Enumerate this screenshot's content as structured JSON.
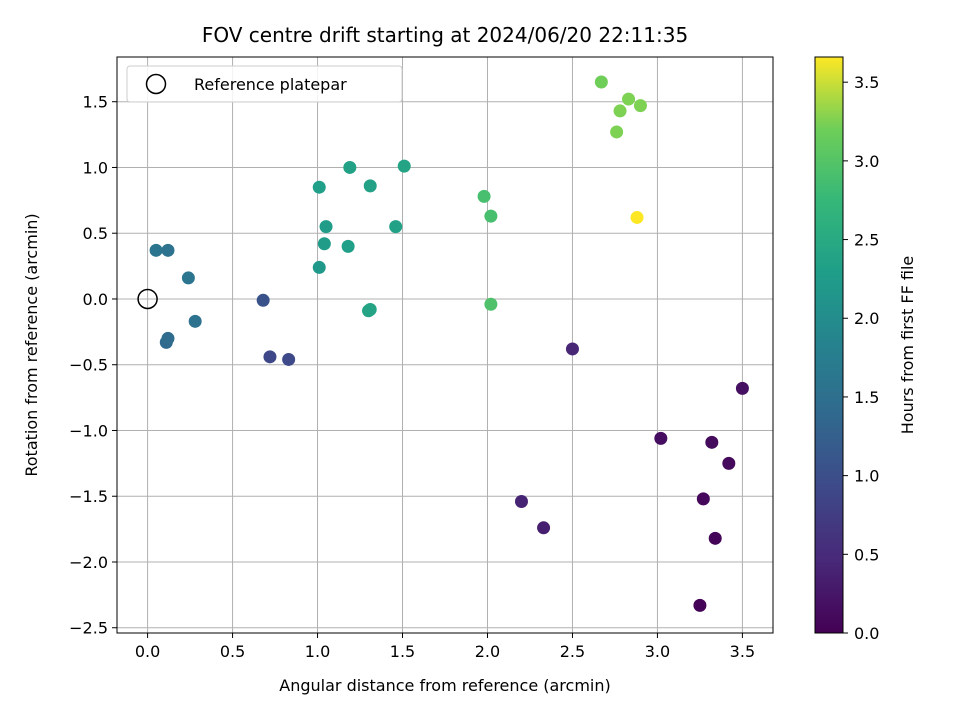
{
  "chart_data": {
    "type": "scatter",
    "title": "FOV centre drift starting at 2024/06/20 22:11:35",
    "xlabel": "Angular distance from reference (arcmin)",
    "ylabel": "Rotation from reference (arcmin)",
    "xlim": [
      -0.18,
      3.68
    ],
    "ylim": [
      -2.54,
      1.84
    ],
    "xticks": [
      0.0,
      0.5,
      1.0,
      1.5,
      2.0,
      2.5,
      3.0,
      3.5
    ],
    "xtick_labels": [
      "0.0",
      "0.5",
      "1.0",
      "1.5",
      "2.0",
      "2.5",
      "3.0",
      "3.5"
    ],
    "yticks": [
      -2.5,
      -2.0,
      -1.5,
      -1.0,
      -0.5,
      0.0,
      0.5,
      1.0,
      1.5
    ],
    "ytick_labels": [
      "−2.5",
      "−2.0",
      "−1.5",
      "−1.0",
      "−0.5",
      "0.0",
      "0.5",
      "1.0",
      "1.5"
    ],
    "grid": true,
    "legend": {
      "position": "upper-left",
      "entries": [
        "Reference platepar"
      ]
    },
    "reference_point": {
      "x": 0.0,
      "y": 0.0,
      "label": "Reference platepar"
    },
    "colorbar": {
      "label": "Hours from first FF file",
      "colormap": "viridis",
      "range": [
        0.0,
        3.66
      ],
      "ticks": [
        0.0,
        0.5,
        1.0,
        1.5,
        2.0,
        2.5,
        3.0,
        3.5
      ],
      "tick_labels": [
        "0.0",
        "0.5",
        "1.0",
        "1.5",
        "2.0",
        "2.5",
        "3.0",
        "3.5"
      ]
    },
    "points": [
      {
        "x": 3.25,
        "y": -2.33,
        "c": 0.02
      },
      {
        "x": 3.34,
        "y": -1.82,
        "c": 0.05
      },
      {
        "x": 3.27,
        "y": -1.52,
        "c": 0.08
      },
      {
        "x": 3.42,
        "y": -1.25,
        "c": 0.1
      },
      {
        "x": 3.32,
        "y": -1.09,
        "c": 0.12
      },
      {
        "x": 3.02,
        "y": -1.06,
        "c": 0.15
      },
      {
        "x": 3.5,
        "y": -0.68,
        "c": 0.18
      },
      {
        "x": 2.33,
        "y": -1.74,
        "c": 0.35
      },
      {
        "x": 2.2,
        "y": -1.54,
        "c": 0.4
      },
      {
        "x": 2.5,
        "y": -0.38,
        "c": 0.45
      },
      {
        "x": 0.72,
        "y": -0.44,
        "c": 0.9
      },
      {
        "x": 0.83,
        "y": -0.46,
        "c": 0.92
      },
      {
        "x": 0.68,
        "y": -0.01,
        "c": 1.05
      },
      {
        "x": 0.11,
        "y": -0.33,
        "c": 1.4
      },
      {
        "x": 0.12,
        "y": -0.3,
        "c": 1.45
      },
      {
        "x": 0.28,
        "y": -0.17,
        "c": 1.55
      },
      {
        "x": 0.24,
        "y": 0.16,
        "c": 1.6
      },
      {
        "x": 0.05,
        "y": 0.37,
        "c": 1.6
      },
      {
        "x": 0.12,
        "y": 0.37,
        "c": 1.55
      },
      {
        "x": 1.01,
        "y": 0.24,
        "c": 2.2
      },
      {
        "x": 1.04,
        "y": 0.42,
        "c": 2.25
      },
      {
        "x": 1.05,
        "y": 0.55,
        "c": 2.25
      },
      {
        "x": 1.18,
        "y": 0.4,
        "c": 2.3
      },
      {
        "x": 1.01,
        "y": 0.85,
        "c": 2.3
      },
      {
        "x": 1.19,
        "y": 1.0,
        "c": 2.35
      },
      {
        "x": 1.31,
        "y": 0.86,
        "c": 2.35
      },
      {
        "x": 1.31,
        "y": -0.08,
        "c": 2.4
      },
      {
        "x": 1.3,
        "y": -0.09,
        "c": 2.4
      },
      {
        "x": 1.46,
        "y": 0.55,
        "c": 2.35
      },
      {
        "x": 1.51,
        "y": 1.01,
        "c": 2.4
      },
      {
        "x": 1.98,
        "y": 0.78,
        "c": 2.9
      },
      {
        "x": 2.02,
        "y": 0.63,
        "c": 2.9
      },
      {
        "x": 2.02,
        "y": -0.04,
        "c": 2.95
      },
      {
        "x": 2.67,
        "y": 1.65,
        "c": 3.2
      },
      {
        "x": 2.83,
        "y": 1.52,
        "c": 3.25
      },
      {
        "x": 2.78,
        "y": 1.43,
        "c": 3.25
      },
      {
        "x": 2.9,
        "y": 1.47,
        "c": 3.25
      },
      {
        "x": 2.76,
        "y": 1.27,
        "c": 3.25
      },
      {
        "x": 2.88,
        "y": 0.62,
        "c": 3.66
      }
    ]
  }
}
